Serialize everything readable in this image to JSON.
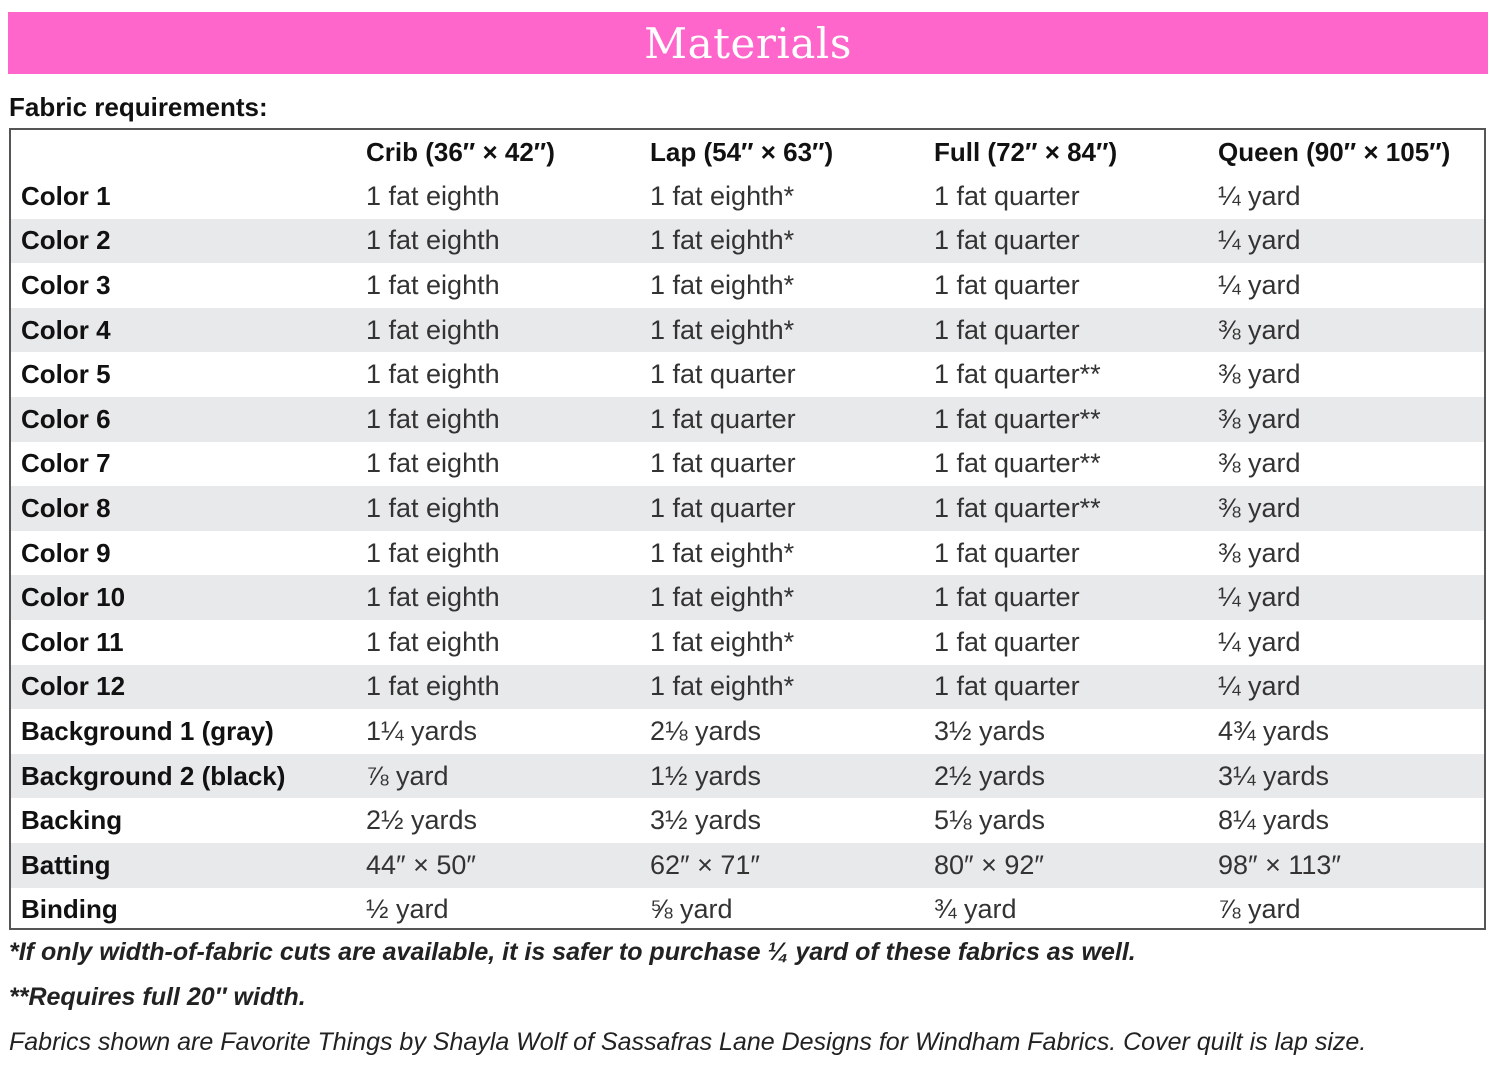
{
  "banner": {
    "title": "Materials",
    "color": "#ff66cc"
  },
  "subheading": "Fabric requirements:",
  "table": {
    "headers": [
      "",
      "Crib (36″ × 42″)",
      "Lap (54″ × 63″)",
      "Full (72″ × 84″)",
      "Queen (90″ × 105″)"
    ],
    "rows": [
      [
        "Color 1",
        "1 fat eighth",
        "1 fat eighth*",
        "1 fat quarter",
        "¼ yard"
      ],
      [
        "Color 2",
        "1 fat eighth",
        "1 fat eighth*",
        "1 fat quarter",
        "¼ yard"
      ],
      [
        "Color 3",
        "1 fat eighth",
        "1 fat eighth*",
        "1 fat quarter",
        "¼ yard"
      ],
      [
        "Color 4",
        "1 fat eighth",
        "1 fat eighth*",
        "1 fat quarter",
        "⅜ yard"
      ],
      [
        "Color 5",
        "1 fat eighth",
        "1 fat quarter",
        "1 fat quarter**",
        "⅜ yard"
      ],
      [
        "Color 6",
        "1 fat eighth",
        "1 fat quarter",
        "1 fat quarter**",
        "⅜ yard"
      ],
      [
        "Color 7",
        "1 fat eighth",
        "1 fat quarter",
        "1 fat quarter**",
        "⅜ yard"
      ],
      [
        "Color 8",
        "1 fat eighth",
        "1 fat quarter",
        "1 fat quarter**",
        "⅜ yard"
      ],
      [
        "Color 9",
        "1 fat eighth",
        "1 fat eighth*",
        "1 fat quarter",
        "⅜ yard"
      ],
      [
        "Color 10",
        "1 fat eighth",
        "1 fat eighth*",
        "1 fat quarter",
        "¼ yard"
      ],
      [
        "Color 11",
        "1 fat eighth",
        "1 fat eighth*",
        "1 fat quarter",
        "¼ yard"
      ],
      [
        "Color 12",
        "1 fat eighth",
        "1 fat eighth*",
        "1 fat quarter",
        "¼ yard"
      ],
      [
        "Background 1 (gray)",
        "1¼ yards",
        "2⅛ yards",
        "3½ yards",
        "4¾ yards"
      ],
      [
        "Background 2 (black)",
        "⅞ yard",
        "1½ yards",
        "2½ yards",
        "3¼ yards"
      ],
      [
        "Backing",
        "2½ yards",
        "3½ yards",
        "5⅛ yards",
        "8¼ yards"
      ],
      [
        "Batting",
        "44″ × 50″",
        "62″ × 71″",
        "80″ × 92″",
        "98″ × 113″"
      ],
      [
        "Binding",
        "½ yard",
        "⅝ yard",
        "¾ yard",
        "⅞ yard"
      ]
    ]
  },
  "footnotes": {
    "one_star": "*If only width-of-fabric cuts are available, it is safer to purchase ¼ yard of these fabrics as well.",
    "two_star": "**Requires full 20″ width.",
    "credit": "Fabrics shown are Favorite Things by Shayla Wolf of Sassafras Lane Designs for Windham Fabrics. Cover quilt is lap size."
  }
}
